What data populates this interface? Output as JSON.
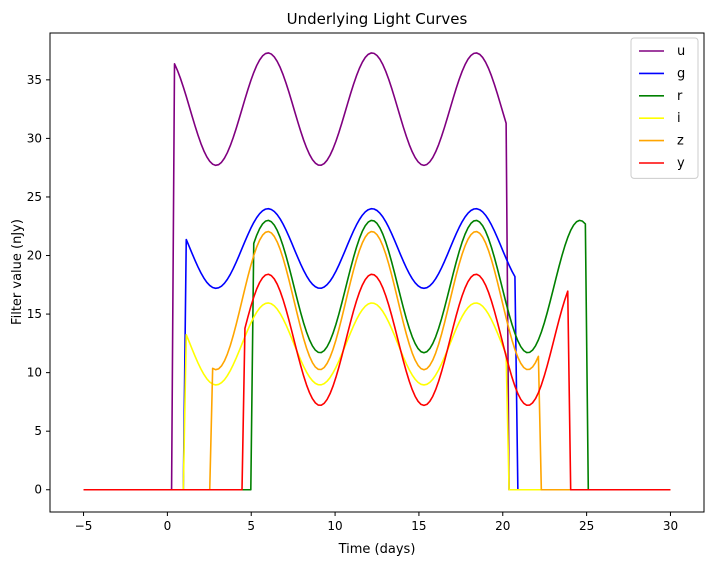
{
  "chart_data": {
    "type": "line",
    "title": "Underlying Light Curves",
    "xlabel": "Time (days)",
    "ylabel": "Filter value (nJy)",
    "xlim": [
      -7.0,
      32.0
    ],
    "ylim": [
      -1.9,
      39.0
    ],
    "xticks": [
      -5,
      0,
      5,
      10,
      15,
      20,
      25,
      30
    ],
    "yticks": [
      0,
      5,
      10,
      15,
      20,
      25,
      30,
      35
    ],
    "xtick_labels": [
      "−5",
      "0",
      "5",
      "10",
      "15",
      "20",
      "25",
      "30"
    ],
    "ytick_labels": [
      "0",
      "5",
      "10",
      "15",
      "20",
      "25",
      "30",
      "35"
    ],
    "grid": false,
    "legend_position": "top-right",
    "x_range": [
      -5,
      30
    ],
    "period_days": 6.2,
    "series": [
      {
        "name": "u",
        "color": "#800080",
        "start": 0.4,
        "end": 20.2,
        "base": 32.5,
        "amp": 4.8,
        "peak_day": 6.0
      },
      {
        "name": "g",
        "color": "#0000ff",
        "start": 1.1,
        "end": 20.8,
        "base": 20.6,
        "amp": 3.4,
        "peak_day": 6.0
      },
      {
        "name": "r",
        "color": "#008000",
        "start": 5.1,
        "end": 25.0,
        "base": 17.35,
        "amp": 5.65,
        "peak_day": 6.0
      },
      {
        "name": "i",
        "color": "#ffff00",
        "start": 1.1,
        "end": 20.3,
        "base": 12.45,
        "amp": 3.5,
        "peak_day": 6.0
      },
      {
        "name": "z",
        "color": "#ffa500",
        "start": 2.7,
        "end": 22.2,
        "base": 16.15,
        "amp": 5.9,
        "peak_day": 6.0
      },
      {
        "name": "y",
        "color": "#ff0000",
        "start": 4.5,
        "end": 24.0,
        "base": 12.8,
        "amp": 5.6,
        "peak_day": 6.0
      }
    ]
  }
}
